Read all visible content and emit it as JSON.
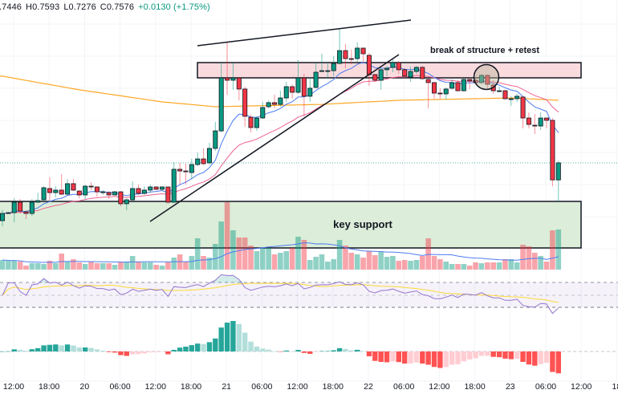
{
  "header": {
    "open": ".7446",
    "high": "H0.7593",
    "low": "L0.7276",
    "close": "C0.7576",
    "change": "+0.0130 (+1.75%)"
  },
  "annotations": {
    "bos_label": "break of structure + retest",
    "support_label": "key support"
  },
  "colors": {
    "up": "#089981",
    "down": "#f23645",
    "ema_fast": "#4d7cf0",
    "ema_slow": "#f06292",
    "ma_long": "#ffa726",
    "resistance_zone": "#f8d7da",
    "support_zone": "#dcedd9",
    "rsi": "#9575cd",
    "rsi_ma": "#fdd835",
    "macd_up_strong": "#26a69a",
    "macd_up_weak": "#b2dfdb",
    "macd_down_strong": "#ff5252",
    "macd_down_weak": "#ffcdd2"
  },
  "chart_data": {
    "type": "candlestick",
    "interval": "1h",
    "x_tick_labels": [
      "12:00",
      "18:00",
      "20",
      "06:00",
      "12:00",
      "18:00",
      "21",
      "06:00",
      "12:00",
      "18:00",
      "22",
      "06:00",
      "12:00",
      "18:00",
      "23",
      "06:00",
      "12:00",
      "18"
    ],
    "last_price": 0.7576,
    "ohlc": [
      [
        0.7135,
        0.7215,
        0.7092,
        0.719
      ],
      [
        0.7196,
        0.7202,
        0.719,
        0.7196
      ],
      [
        0.7196,
        0.7306,
        0.7123,
        0.7276
      ],
      [
        0.7276,
        0.73,
        0.719,
        0.7208
      ],
      [
        0.7202,
        0.7215,
        0.7147,
        0.719
      ],
      [
        0.719,
        0.73,
        0.7172,
        0.7276
      ],
      [
        0.7276,
        0.7349,
        0.727,
        0.7288
      ],
      [
        0.7294,
        0.7398,
        0.7282,
        0.7386
      ],
      [
        0.738,
        0.7465,
        0.7288,
        0.7349
      ],
      [
        0.7349,
        0.7398,
        0.7313,
        0.7368
      ],
      [
        0.7368,
        0.749,
        0.7331,
        0.7337
      ],
      [
        0.7337,
        0.7453,
        0.7331,
        0.7417
      ],
      [
        0.7417,
        0.7453,
        0.7361,
        0.7368
      ],
      [
        0.7361,
        0.7368,
        0.7306,
        0.7331
      ],
      [
        0.7331,
        0.741,
        0.73,
        0.7398
      ],
      [
        0.7398,
        0.7429,
        0.7368,
        0.7392
      ],
      [
        0.7392,
        0.7398,
        0.7319,
        0.7355
      ],
      [
        0.7355,
        0.7368,
        0.7331,
        0.7355
      ],
      [
        0.7349,
        0.7361,
        0.73,
        0.7331
      ],
      [
        0.7331,
        0.7361,
        0.7331,
        0.7355
      ],
      [
        0.7355,
        0.7361,
        0.7245,
        0.7264
      ],
      [
        0.7264,
        0.7306,
        0.7215,
        0.7294
      ],
      [
        0.7294,
        0.7435,
        0.7288,
        0.738
      ],
      [
        0.738,
        0.741,
        0.7331,
        0.7343
      ],
      [
        0.7343,
        0.7398,
        0.7331,
        0.7368
      ],
      [
        0.7368,
        0.741,
        0.7349,
        0.7392
      ],
      [
        0.7392,
        0.7398,
        0.7368,
        0.7374
      ],
      [
        0.7374,
        0.7398,
        0.7361,
        0.7392
      ],
      [
        0.7392,
        0.7392,
        0.7264,
        0.7276
      ],
      [
        0.7276,
        0.7582,
        0.727,
        0.7527
      ],
      [
        0.7527,
        0.7576,
        0.741,
        0.7514
      ],
      [
        0.7514,
        0.757,
        0.741,
        0.7508
      ],
      [
        0.7502,
        0.7606,
        0.7453,
        0.7563
      ],
      [
        0.7563,
        0.7655,
        0.7551,
        0.7606
      ],
      [
        0.7606,
        0.7686,
        0.7557,
        0.757
      ],
      [
        0.7576,
        0.7729,
        0.7563,
        0.7686
      ],
      [
        0.7686,
        0.7888,
        0.7667,
        0.782
      ],
      [
        0.782,
        0.8341,
        0.7808,
        0.8224
      ],
      [
        0.8224,
        0.8494,
        0.8096,
        0.8206
      ],
      [
        0.8206,
        0.8341,
        0.8133,
        0.8224
      ],
      [
        0.8224,
        0.823,
        0.8053,
        0.8139
      ],
      [
        0.8139,
        0.8157,
        0.7851,
        0.7931
      ],
      [
        0.7924,
        0.7943,
        0.7808,
        0.7845
      ],
      [
        0.7845,
        0.7931,
        0.782,
        0.7918
      ],
      [
        0.7918,
        0.8041,
        0.7912,
        0.7998
      ],
      [
        0.8004,
        0.8053,
        0.7992,
        0.8035
      ],
      [
        0.8035,
        0.8096,
        0.7992,
        0.8022
      ],
      [
        0.8022,
        0.8126,
        0.8004,
        0.8071
      ],
      [
        0.8071,
        0.8194,
        0.8041,
        0.8157
      ],
      [
        0.8157,
        0.8175,
        0.8065,
        0.8114
      ],
      [
        0.8114,
        0.8359,
        0.8102,
        0.8224
      ],
      [
        0.8224,
        0.8255,
        0.7931,
        0.8084
      ],
      [
        0.8084,
        0.8224,
        0.8041,
        0.8145
      ],
      [
        0.8151,
        0.8341,
        0.8145,
        0.8267
      ],
      [
        0.8279,
        0.8408,
        0.8267,
        0.8279
      ],
      [
        0.8279,
        0.8347,
        0.8218,
        0.8279
      ],
      [
        0.8279,
        0.839,
        0.8237,
        0.8334
      ],
      [
        0.8334,
        0.8604,
        0.8328,
        0.8432
      ],
      [
        0.8432,
        0.8482,
        0.8298,
        0.8371
      ],
      [
        0.8371,
        0.8439,
        0.8328,
        0.8365
      ],
      [
        0.8371,
        0.8494,
        0.8347,
        0.8451
      ],
      [
        0.8451,
        0.8451,
        0.8347,
        0.8408
      ],
      [
        0.8396,
        0.8414,
        0.8163,
        0.8249
      ],
      [
        0.8249,
        0.8255,
        0.8194,
        0.8206
      ],
      [
        0.8206,
        0.8298,
        0.8133,
        0.8286
      ],
      [
        0.8286,
        0.8316,
        0.8237,
        0.8298
      ],
      [
        0.8304,
        0.8371,
        0.8267,
        0.8341
      ],
      [
        0.8341,
        0.8353,
        0.8255,
        0.8286
      ],
      [
        0.8286,
        0.8298,
        0.8218,
        0.8237
      ],
      [
        0.823,
        0.831,
        0.8194,
        0.8273
      ],
      [
        0.8273,
        0.8316,
        0.8255,
        0.8304
      ],
      [
        0.8304,
        0.8316,
        0.8212,
        0.8218
      ],
      [
        0.8212,
        0.8218,
        0.7992,
        0.8188
      ],
      [
        0.8188,
        0.8194,
        0.8065,
        0.8108
      ],
      [
        0.8108,
        0.8145,
        0.8065,
        0.8102
      ],
      [
        0.8102,
        0.8151,
        0.8059,
        0.8139
      ],
      [
        0.8145,
        0.8212,
        0.8133,
        0.8188
      ],
      [
        0.8188,
        0.8206,
        0.812,
        0.8126
      ],
      [
        0.8126,
        0.8218,
        0.812,
        0.8212
      ],
      [
        0.8212,
        0.8224,
        0.8139,
        0.82
      ],
      [
        0.8206,
        0.8218,
        0.8175,
        0.8188
      ],
      [
        0.8188,
        0.8255,
        0.8175,
        0.8243
      ],
      [
        0.8243,
        0.8249,
        0.8139,
        0.8175
      ],
      [
        0.8169,
        0.8206,
        0.8102,
        0.8126
      ],
      [
        0.8126,
        0.8157,
        0.8114,
        0.8126
      ],
      [
        0.8126,
        0.8133,
        0.8059,
        0.8065
      ],
      [
        0.8065,
        0.8084,
        0.801,
        0.8065
      ],
      [
        0.8065,
        0.8102,
        0.8041,
        0.8084
      ],
      [
        0.8078,
        0.8084,
        0.7839,
        0.7918
      ],
      [
        0.7918,
        0.7961,
        0.7839,
        0.7869
      ],
      [
        0.7863,
        0.7949,
        0.7796,
        0.7857
      ],
      [
        0.7857,
        0.7961,
        0.7827,
        0.7918
      ],
      [
        0.7918,
        0.7918,
        0.7839,
        0.79
      ],
      [
        0.79,
        0.7918,
        0.7398,
        0.7446
      ],
      [
        0.7446,
        0.7593,
        0.7276,
        0.7576
      ]
    ],
    "volume": [
      12,
      11,
      11,
      10,
      5,
      8,
      8,
      7,
      11,
      8,
      20,
      10,
      13,
      9,
      7,
      10,
      8,
      8,
      8,
      6,
      10,
      10,
      17,
      10,
      9,
      9,
      6,
      5,
      9,
      15,
      19,
      10,
      17,
      39,
      17,
      15,
      32,
      60,
      84,
      49,
      40,
      40,
      30,
      23,
      27,
      27,
      19,
      21,
      23,
      27,
      41,
      37,
      12,
      16,
      19,
      10,
      13,
      37,
      30,
      21,
      19,
      15,
      23,
      18,
      22,
      16,
      17,
      11,
      12,
      11,
      12,
      17,
      39,
      17,
      13,
      10,
      7,
      7,
      7,
      5,
      9,
      8,
      9,
      9,
      9,
      13,
      13,
      9,
      31,
      29,
      21,
      17,
      10,
      49,
      50
    ],
    "long_ma": {
      "index": [
        0,
        13,
        27,
        36,
        54,
        67,
        86,
        94
      ],
      "values": [
        0.8237,
        0.8133,
        0.8041,
        0.8004,
        0.8022,
        0.8053,
        0.8071,
        0.8053
      ]
    },
    "rsi_levels": [
      70,
      50,
      30
    ]
  }
}
